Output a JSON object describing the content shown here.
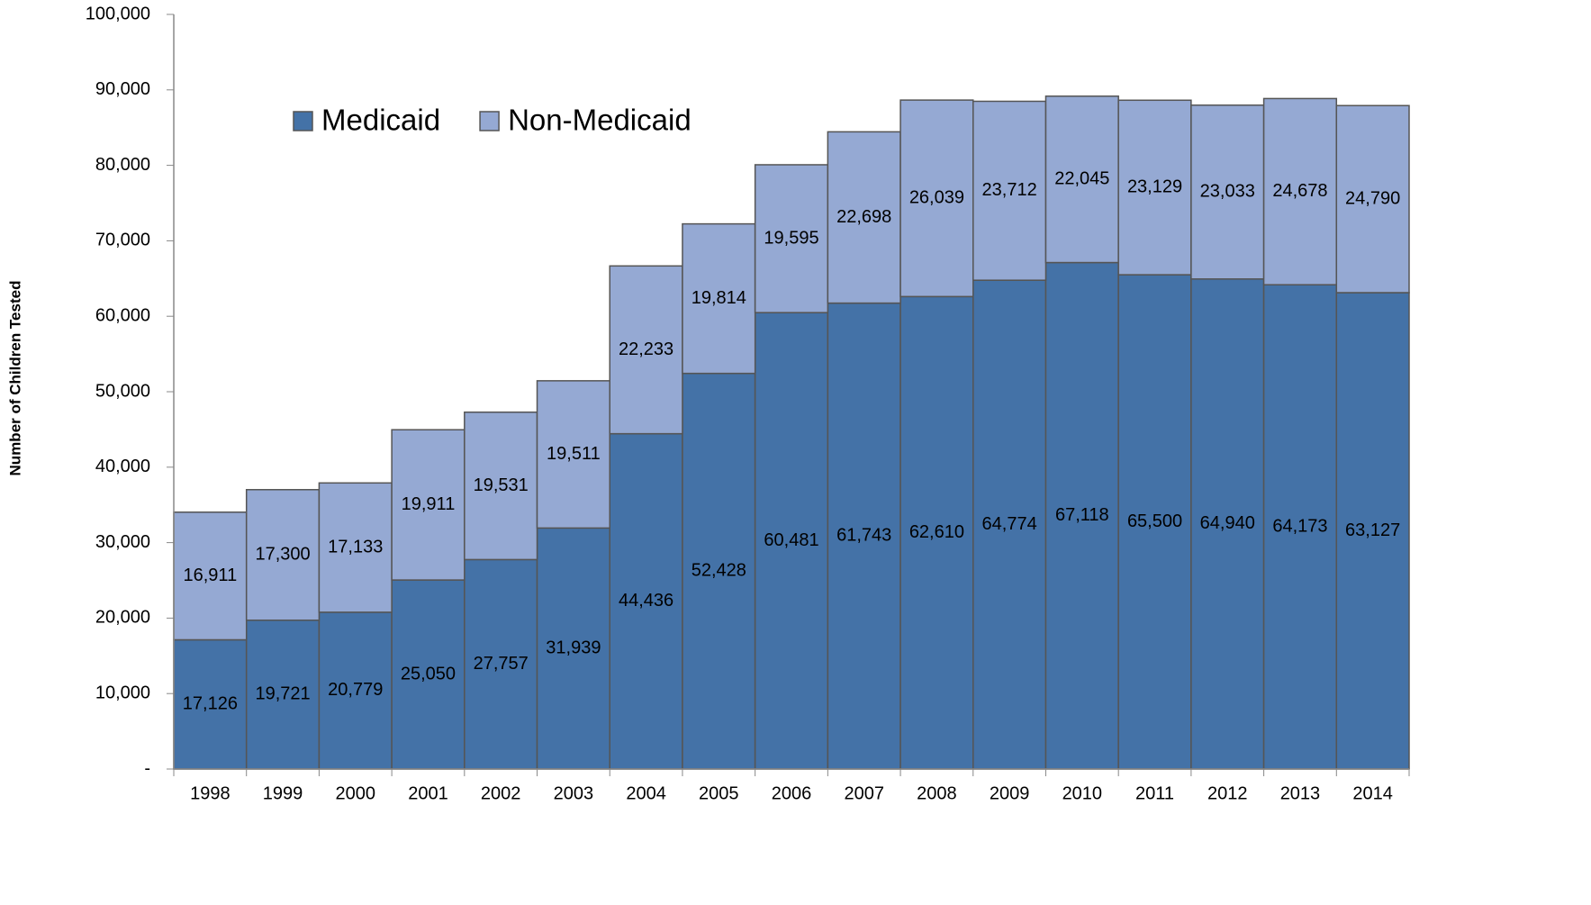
{
  "chart_data": {
    "type": "stacked-bar",
    "y_axis_label": "Number of Children Tested",
    "categories": [
      "1998",
      "1999",
      "2000",
      "2001",
      "2002",
      "2003",
      "2004",
      "2005",
      "2006",
      "2007",
      "2008",
      "2009",
      "2010",
      "2011",
      "2012",
      "2013",
      "2014"
    ],
    "series": [
      {
        "name": "Medicaid",
        "color": "#4472a7",
        "values": [
          17126,
          19721,
          20779,
          25050,
          27757,
          31939,
          44436,
          52428,
          60481,
          61743,
          62610,
          64774,
          67118,
          65500,
          64940,
          64173,
          63127
        ],
        "value_labels": [
          "17,126",
          "19,721",
          "20,779",
          "25,050",
          "27,757",
          "31,939",
          "44,436",
          "52,428",
          "60,481",
          "61,743",
          "62,610",
          "64,774",
          "67,118",
          "65,500",
          "64,940",
          "64,173",
          "63,127"
        ]
      },
      {
        "name": "Non-Medicaid",
        "color": "#95a9d3",
        "values": [
          16911,
          17300,
          17133,
          19911,
          19531,
          19511,
          22233,
          19814,
          19595,
          22698,
          26039,
          23712,
          22045,
          23129,
          23033,
          24678,
          24790
        ],
        "value_labels": [
          "16,911",
          "17,300",
          "17,133",
          "19,911",
          "19,531",
          "19,511",
          "22,233",
          "19,814",
          "19,595",
          "22,698",
          "26,039",
          "23,712",
          "22,045",
          "23,129",
          "23,033",
          "24,678",
          "24,790"
        ]
      }
    ],
    "ylim": [
      0,
      100000
    ],
    "yticks": [
      {
        "value": 0,
        "label": "-"
      },
      {
        "value": 10000,
        "label": "10,000"
      },
      {
        "value": 20000,
        "label": "20,000"
      },
      {
        "value": 30000,
        "label": "30,000"
      },
      {
        "value": 40000,
        "label": "40,000"
      },
      {
        "value": 50000,
        "label": "50,000"
      },
      {
        "value": 60000,
        "label": "60,000"
      },
      {
        "value": 70000,
        "label": "70,000"
      },
      {
        "value": 80000,
        "label": "80,000"
      },
      {
        "value": 90000,
        "label": "90,000"
      },
      {
        "value": 100000,
        "label": "100,000"
      }
    ],
    "grid": false,
    "legend": "top-left"
  }
}
